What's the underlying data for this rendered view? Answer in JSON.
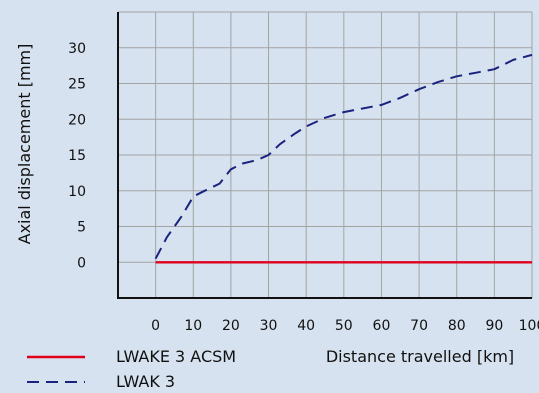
{
  "chart_data": {
    "type": "line",
    "xlabel": "Distance travelled [km]",
    "ylabel": "Axial displacement [mm]",
    "xlim": [
      -10,
      100
    ],
    "ylim": [
      -5,
      35
    ],
    "x_ticks": [
      0,
      10,
      20,
      30,
      40,
      50,
      60,
      70,
      80,
      90,
      100
    ],
    "y_ticks": [
      0,
      5,
      10,
      15,
      20,
      25,
      30
    ],
    "grid": true,
    "legend_position": "bottom-left",
    "series": [
      {
        "name": "LWAKE 3 ACSM",
        "color": "#e0001b",
        "dash": "solid",
        "x": [
          0,
          100
        ],
        "y": [
          0,
          0
        ]
      },
      {
        "name": "LWAK 3",
        "color": "#1a237e",
        "dash": "dashed",
        "x": [
          0,
          3,
          7,
          10,
          13,
          17,
          20,
          23,
          27,
          30,
          33,
          37,
          40,
          45,
          50,
          55,
          60,
          65,
          70,
          75,
          80,
          85,
          90,
          95,
          100
        ],
        "y": [
          0.5,
          3.5,
          6.5,
          9.2,
          10,
          11,
          13,
          13.8,
          14.3,
          15,
          16.5,
          18,
          19,
          20.2,
          21,
          21.5,
          22,
          23,
          24.2,
          25.2,
          26,
          26.5,
          27,
          28.3,
          29
        ]
      }
    ]
  }
}
